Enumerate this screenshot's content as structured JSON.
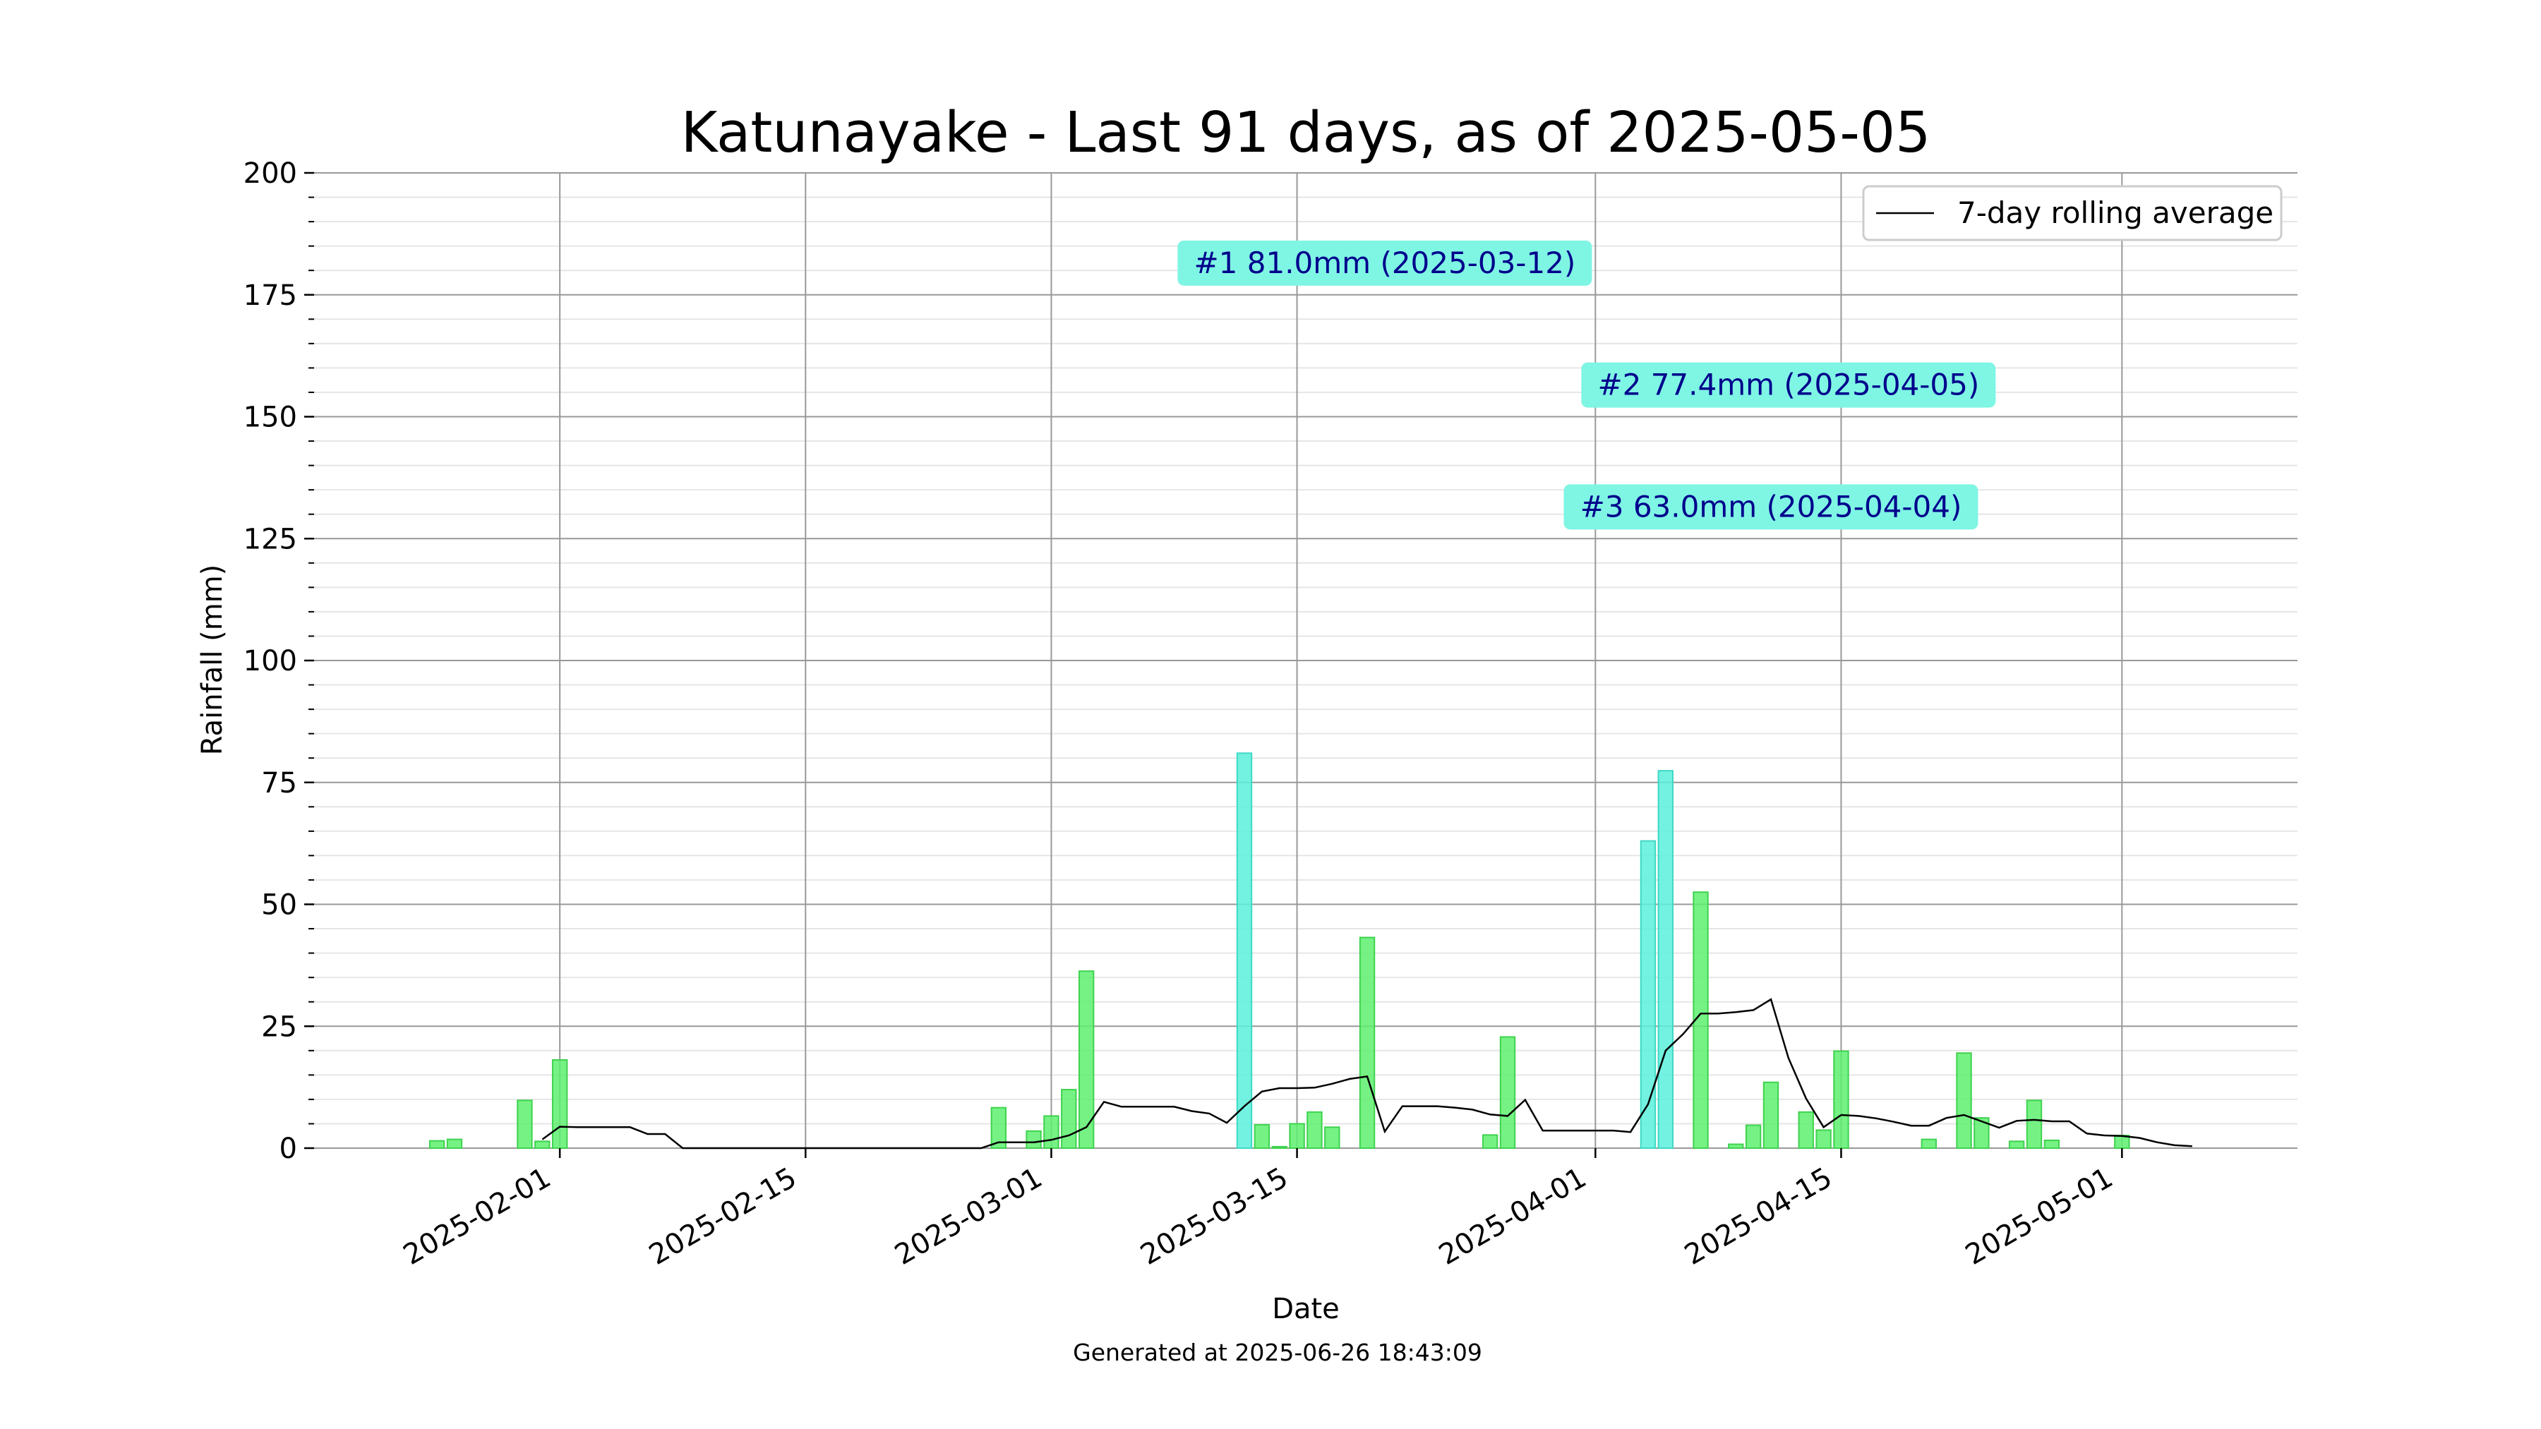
{
  "chart_data": {
    "type": "bar",
    "title": "Katunayake - Last 91 days, as of 2025-05-05",
    "xlabel": "Date",
    "ylabel": "Rainfall (mm)",
    "ylim": [
      0,
      200
    ],
    "yticks": [
      0,
      25,
      50,
      75,
      100,
      125,
      150,
      175,
      200
    ],
    "xlim": [
      "2025-01-18",
      "2025-05-11"
    ],
    "xticks": [
      "2025-02-01",
      "2025-02-15",
      "2025-03-01",
      "2025-03-15",
      "2025-04-01",
      "2025-04-15",
      "2025-05-01"
    ],
    "grid": true,
    "legend": {
      "position": "top-right",
      "entries": [
        "7-day rolling average"
      ]
    },
    "footer": "Generated at 2025-06-26 18:43:09",
    "colors": {
      "bar": "#5ef06e",
      "bar_edge": "#3fd24f",
      "top": "#5af0dc",
      "top_edge": "#3fd8c4",
      "line": "#000000",
      "annotation_bg": "#7ff5e4",
      "annotation_text": "#00008b"
    },
    "series": [
      {
        "name": "Rainfall",
        "x": [
          "2025-01-25",
          "2025-01-26",
          "2025-01-27",
          "2025-01-28",
          "2025-01-29",
          "2025-01-30",
          "2025-01-31",
          "2025-02-01",
          "2025-02-02",
          "2025-02-03",
          "2025-02-04",
          "2025-02-05",
          "2025-02-06",
          "2025-02-07",
          "2025-02-08",
          "2025-02-09",
          "2025-02-10",
          "2025-02-11",
          "2025-02-12",
          "2025-02-13",
          "2025-02-14",
          "2025-02-15",
          "2025-02-16",
          "2025-02-17",
          "2025-02-18",
          "2025-02-19",
          "2025-02-20",
          "2025-02-21",
          "2025-02-22",
          "2025-02-23",
          "2025-02-24",
          "2025-02-25",
          "2025-02-26",
          "2025-02-27",
          "2025-02-28",
          "2025-03-01",
          "2025-03-02",
          "2025-03-03",
          "2025-03-04",
          "2025-03-05",
          "2025-03-06",
          "2025-03-07",
          "2025-03-08",
          "2025-03-09",
          "2025-03-10",
          "2025-03-11",
          "2025-03-12",
          "2025-03-13",
          "2025-03-14",
          "2025-03-15",
          "2025-03-16",
          "2025-03-17",
          "2025-03-18",
          "2025-03-19",
          "2025-03-20",
          "2025-03-21",
          "2025-03-22",
          "2025-03-23",
          "2025-03-24",
          "2025-03-25",
          "2025-03-26",
          "2025-03-27",
          "2025-03-28",
          "2025-03-29",
          "2025-03-30",
          "2025-03-31",
          "2025-04-01",
          "2025-04-02",
          "2025-04-03",
          "2025-04-04",
          "2025-04-05",
          "2025-04-06",
          "2025-04-07",
          "2025-04-08",
          "2025-04-09",
          "2025-04-10",
          "2025-04-11",
          "2025-04-12",
          "2025-04-13",
          "2025-04-14",
          "2025-04-15",
          "2025-04-16",
          "2025-04-17",
          "2025-04-18",
          "2025-04-19",
          "2025-04-20",
          "2025-04-21",
          "2025-04-22",
          "2025-04-23",
          "2025-04-24",
          "2025-04-25",
          "2025-04-26",
          "2025-04-27",
          "2025-04-28",
          "2025-04-29",
          "2025-04-30",
          "2025-05-01",
          "2025-05-02",
          "2025-05-03",
          "2025-05-04",
          "2025-05-05"
        ],
        "values": [
          1.5,
          1.8,
          0,
          0,
          0,
          9.8,
          1.4,
          18.1,
          0,
          0,
          0,
          0,
          0,
          0,
          0,
          0,
          0,
          0,
          0,
          0,
          0,
          0,
          0,
          0,
          0,
          0,
          0,
          0,
          0,
          0,
          0,
          0,
          8.3,
          0,
          3.5,
          6.6,
          12.0,
          36.3,
          0,
          0,
          0,
          0,
          0,
          0,
          0,
          0,
          81.0,
          4.8,
          0.3,
          5.0,
          7.4,
          4.3,
          0,
          43.2,
          0,
          0,
          0,
          0,
          0,
          0,
          2.7,
          22.8,
          0,
          0,
          0,
          0,
          0,
          0,
          0,
          63.0,
          77.4,
          0,
          52.5,
          0,
          0.8,
          4.7,
          13.5,
          0,
          7.4,
          3.7,
          19.9,
          0,
          0,
          0,
          0,
          1.8,
          0,
          19.5,
          6.2,
          0,
          1.4,
          9.8,
          1.6,
          0,
          0,
          0,
          2.6,
          0,
          0,
          0,
          0
        ]
      },
      {
        "name": "7-day rolling average",
        "x": [
          "2025-01-31",
          "2025-02-01",
          "2025-02-02",
          "2025-02-03",
          "2025-02-04",
          "2025-02-05",
          "2025-02-06",
          "2025-02-07",
          "2025-02-08",
          "2025-02-09",
          "2025-02-10",
          "2025-02-15",
          "2025-02-20",
          "2025-02-25",
          "2025-02-26",
          "2025-02-27",
          "2025-02-28",
          "2025-03-01",
          "2025-03-02",
          "2025-03-03",
          "2025-03-04",
          "2025-03-05",
          "2025-03-06",
          "2025-03-07",
          "2025-03-08",
          "2025-03-09",
          "2025-03-10",
          "2025-03-11",
          "2025-03-12",
          "2025-03-13",
          "2025-03-14",
          "2025-03-15",
          "2025-03-16",
          "2025-03-17",
          "2025-03-18",
          "2025-03-19",
          "2025-03-20",
          "2025-03-21",
          "2025-03-22",
          "2025-03-23",
          "2025-03-24",
          "2025-03-25",
          "2025-03-26",
          "2025-03-27",
          "2025-03-28",
          "2025-03-29",
          "2025-03-30",
          "2025-03-31",
          "2025-04-01",
          "2025-04-02",
          "2025-04-03",
          "2025-04-04",
          "2025-04-05",
          "2025-04-06",
          "2025-04-07",
          "2025-04-08",
          "2025-04-09",
          "2025-04-10",
          "2025-04-11",
          "2025-04-12",
          "2025-04-13",
          "2025-04-14",
          "2025-04-15",
          "2025-04-16",
          "2025-04-17",
          "2025-04-18",
          "2025-04-19",
          "2025-04-20",
          "2025-04-21",
          "2025-04-22",
          "2025-04-23",
          "2025-04-24",
          "2025-04-25",
          "2025-04-26",
          "2025-04-27",
          "2025-04-28",
          "2025-04-29",
          "2025-04-30",
          "2025-05-01",
          "2025-05-02",
          "2025-05-03",
          "2025-05-04",
          "2025-05-05"
        ],
        "values": [
          1.8,
          4.4,
          4.3,
          4.3,
          4.3,
          4.3,
          2.9,
          2.9,
          0,
          0,
          0,
          0,
          0,
          0,
          1.2,
          1.2,
          1.2,
          1.7,
          2.6,
          4.3,
          9.5,
          8.5,
          8.5,
          8.5,
          8.5,
          7.6,
          7.1,
          5.2,
          8.6,
          11.6,
          12.3,
          12.3,
          12.4,
          13.2,
          14.2,
          14.7,
          3.4,
          8.6,
          8.6,
          8.6,
          8.3,
          7.9,
          6.9,
          6.6,
          9.9,
          3.6,
          3.6,
          3.6,
          3.6,
          3.6,
          3.3,
          9.0,
          20.0,
          23.4,
          27.6,
          27.6,
          27.9,
          28.3,
          30.5,
          18.5,
          10.2,
          4.3,
          6.8,
          6.6,
          6.1,
          5.4,
          4.6,
          4.6,
          6.2,
          6.8,
          5.5,
          4.2,
          5.6,
          5.8,
          5.5,
          5.5,
          3.0,
          2.6,
          2.5,
          2.1,
          1.2,
          0.6,
          0.4
        ]
      }
    ],
    "annotations": [
      {
        "text": "#1 81.0mm (2025-03-12)",
        "x": "2025-03-20",
        "y": 181.5
      },
      {
        "text": "#2 77.4mm (2025-04-05)",
        "x": "2025-04-12",
        "y": 156.5
      },
      {
        "text": "#3 63.0mm (2025-04-04)",
        "x": "2025-04-11",
        "y": 131.5
      }
    ]
  }
}
